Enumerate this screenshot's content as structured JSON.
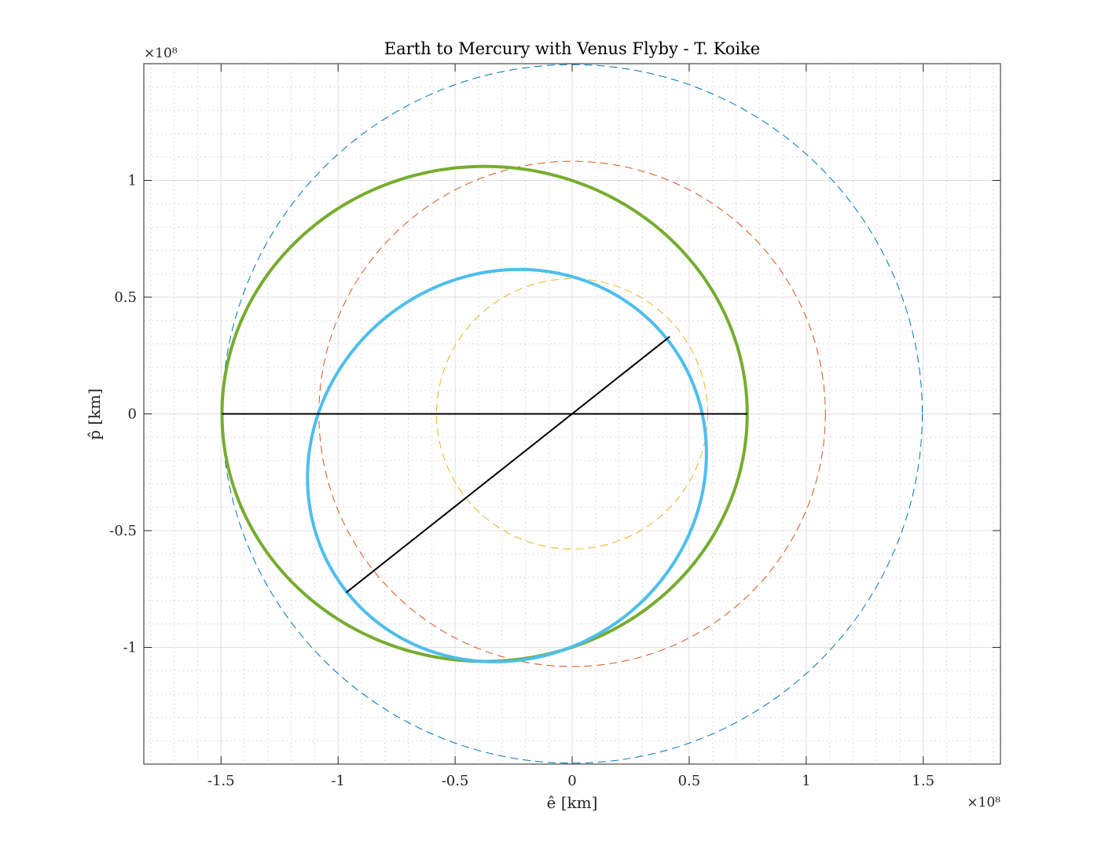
{
  "chart_data": {
    "type": "line",
    "title": "Earth to Mercury with Venus Flyby - T. Koike",
    "xlabel": "ê [km]",
    "ylabel": "p̂ [km]",
    "x_exponent_label": "×10⁸",
    "y_exponent_label": "×10⁸",
    "xlim": [
      -1.83,
      1.83
    ],
    "ylim": [
      -1.5,
      1.5
    ],
    "x_scale": 100000000,
    "y_scale": 100000000,
    "xticks": [
      -1.5,
      -1,
      -0.5,
      0,
      0.5,
      1,
      1.5
    ],
    "yticks": [
      -1,
      -0.5,
      0,
      0.5,
      1
    ],
    "xtick_labels": [
      "-1.5",
      "-1",
      "-0.5",
      "0",
      "0.5",
      "1",
      "1.5"
    ],
    "ytick_labels": [
      "-1",
      "-0.5",
      "0",
      "0.5",
      "1"
    ],
    "x_minor_step": 0.1,
    "y_minor_step": 0.1,
    "grid": true,
    "minor_grid": true,
    "series": [
      {
        "kind": "circle",
        "center": [
          0,
          0
        ],
        "radius": 1.496,
        "color": "#0072bd",
        "style": "dashed",
        "width": 1
      },
      {
        "kind": "circle",
        "center": [
          0,
          0
        ],
        "radius": 1.082,
        "color": "#d95319",
        "style": "dashed",
        "width": 1
      },
      {
        "kind": "circle",
        "center": [
          0,
          0
        ],
        "radius": 0.579,
        "color": "#edb120",
        "style": "dashed",
        "width": 1
      },
      {
        "kind": "ellipse",
        "center": [
          -0.374,
          0
        ],
        "rx": 1.122,
        "ry": 1.06,
        "rotation_deg": 0,
        "color": "#77ac30",
        "style": "solid",
        "width": 4
      },
      {
        "kind": "ellipse",
        "center": [
          -0.2785,
          -0.2215
        ],
        "rx": 0.8725,
        "ry": 0.819,
        "rotation_deg": 38.5,
        "color": "#4dbeee",
        "style": "solid",
        "width": 4
      },
      {
        "kind": "segment",
        "points": [
          [
            -1.496,
            0
          ],
          [
            0.748,
            0
          ]
        ],
        "color": "#000000",
        "style": "solid",
        "width": 2
      },
      {
        "kind": "segment",
        "points": [
          [
            -0.965,
            -0.765
          ],
          [
            0.417,
            0.331
          ]
        ],
        "color": "#000000",
        "style": "solid",
        "width": 2
      }
    ]
  }
}
